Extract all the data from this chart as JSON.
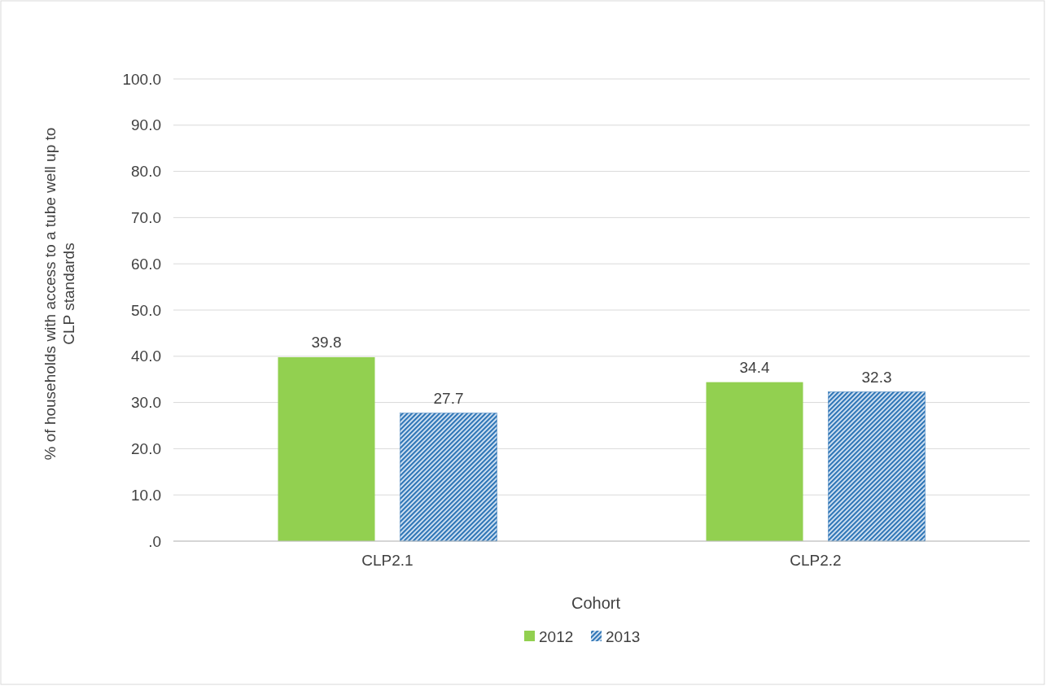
{
  "chart_data": {
    "type": "bar",
    "xlabel": "Cohort",
    "ylabel": "% of households  with access to a tube well up to CLP standards",
    "categories": [
      "CLP2.1",
      "CLP2.2"
    ],
    "series": [
      {
        "name": "2012",
        "color": "#92d050",
        "values": [
          39.8,
          34.4
        ]
      },
      {
        "name": "2013",
        "color": "#2e75b6",
        "values": [
          27.7,
          32.3
        ]
      }
    ],
    "ylim": [
      0,
      100
    ],
    "yticks": [
      {
        "value": 0,
        "label": ".0"
      },
      {
        "value": 10,
        "label": "10.0"
      },
      {
        "value": 20,
        "label": "20.0"
      },
      {
        "value": 30,
        "label": "30.0"
      },
      {
        "value": 40,
        "label": "40.0"
      },
      {
        "value": 50,
        "label": "50.0"
      },
      {
        "value": 60,
        "label": "60.0"
      },
      {
        "value": 70,
        "label": "70.0"
      },
      {
        "value": 80,
        "label": "80.0"
      },
      {
        "value": 90,
        "label": "90.0"
      },
      {
        "value": 100,
        "label": "100.0"
      }
    ],
    "grid": "y",
    "data_labels": true,
    "legend": "bottom"
  }
}
